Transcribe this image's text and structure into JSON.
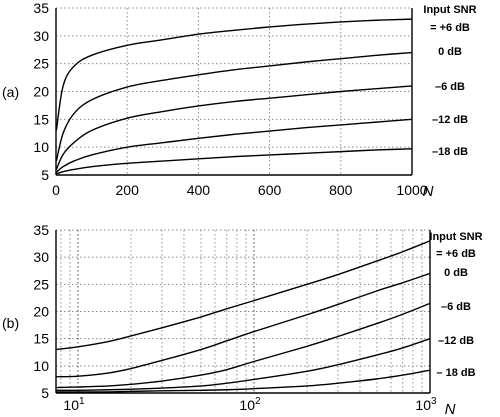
{
  "chart_data": [
    {
      "panel": "(a)",
      "type": "line",
      "xscale": "linear",
      "xlabel": "N",
      "ylabel": "",
      "xlim": [
        0,
        1000
      ],
      "ylim": [
        5,
        35
      ],
      "xticks": [
        0,
        200,
        400,
        600,
        800,
        1000
      ],
      "xtick_labels": [
        "0",
        "200",
        "400",
        "600",
        "800",
        "1000"
      ],
      "yticks": [
        5,
        10,
        15,
        20,
        25,
        30,
        35
      ],
      "ytick_labels": [
        "5",
        "10",
        "15",
        "20",
        "25",
        "30",
        "35"
      ],
      "grid": true,
      "series": [
        {
          "name": "Input SNR = +6 dB",
          "x": [
            1,
            20,
            50,
            100,
            200,
            300,
            400,
            500,
            600,
            700,
            800,
            900,
            1000
          ],
          "values": [
            13,
            21,
            24.5,
            26.5,
            28.3,
            29.3,
            30.3,
            31,
            31.6,
            32.1,
            32.5,
            32.8,
            33
          ]
        },
        {
          "name": "0 dB",
          "x": [
            1,
            20,
            50,
            100,
            200,
            300,
            400,
            500,
            600,
            700,
            800,
            900,
            1000
          ],
          "values": [
            7.5,
            12.5,
            16,
            18.5,
            20.8,
            22,
            23,
            23.9,
            24.6,
            25.3,
            25.9,
            26.5,
            27
          ]
        },
        {
          "name": "–6 dB",
          "x": [
            1,
            20,
            50,
            100,
            200,
            300,
            400,
            500,
            600,
            700,
            800,
            900,
            1000
          ],
          "values": [
            6,
            8.7,
            10.8,
            13,
            15.2,
            16.4,
            17.4,
            18.2,
            18.8,
            19.4,
            20,
            20.5,
            21
          ]
        },
        {
          "name": "–12 dB",
          "x": [
            1,
            20,
            50,
            100,
            200,
            300,
            400,
            500,
            600,
            700,
            800,
            900,
            1000
          ],
          "values": [
            5.5,
            6.5,
            7.5,
            8.6,
            10,
            10.8,
            11.6,
            12.3,
            12.9,
            13.5,
            14,
            14.5,
            15
          ]
        },
        {
          "name": "–18 dB",
          "x": [
            1,
            20,
            50,
            100,
            200,
            300,
            400,
            500,
            600,
            700,
            800,
            900,
            1000
          ],
          "values": [
            5.2,
            5.6,
            6,
            6.5,
            7.1,
            7.5,
            7.9,
            8.3,
            8.6,
            8.9,
            9.2,
            9.5,
            9.7
          ]
        }
      ]
    },
    {
      "panel": "(b)",
      "type": "line",
      "xscale": "log",
      "xlabel": "N",
      "ylabel": "",
      "xlim": [
        7.5,
        1000
      ],
      "ylim": [
        5,
        35
      ],
      "xticks": [
        10,
        100,
        1000
      ],
      "xtick_labels": [
        {
          "base": "10",
          "exp": "1"
        },
        {
          "base": "10",
          "exp": "2"
        },
        {
          "base": "10",
          "exp": "3"
        }
      ],
      "yticks": [
        5,
        10,
        15,
        20,
        25,
        30,
        35
      ],
      "ytick_labels": [
        "5",
        "10",
        "15",
        "20",
        "25",
        "30",
        "35"
      ],
      "grid": true,
      "series": [
        {
          "name": "Input SNR = +6 dB",
          "x": [
            7.5,
            10,
            15,
            20,
            30,
            50,
            70,
            100,
            200,
            300,
            500,
            700,
            1000
          ],
          "values": [
            13,
            13.5,
            14.5,
            15.5,
            17,
            19,
            20.5,
            22,
            25,
            26.8,
            29.3,
            31,
            33
          ]
        },
        {
          "name": "0 dB",
          "x": [
            7.5,
            10,
            15,
            20,
            30,
            50,
            70,
            100,
            200,
            300,
            500,
            700,
            1000
          ],
          "values": [
            8,
            8.1,
            8.7,
            9.5,
            11,
            13,
            14.6,
            16.3,
            19.4,
            21.3,
            23.8,
            25.3,
            27
          ]
        },
        {
          "name": "–6 dB",
          "x": [
            7.5,
            10,
            15,
            20,
            30,
            50,
            70,
            100,
            200,
            300,
            500,
            700,
            1000
          ],
          "values": [
            6,
            6.1,
            6.3,
            6.6,
            7.2,
            8.3,
            9.3,
            10.8,
            13.6,
            15.4,
            17.8,
            19.5,
            21.5
          ]
        },
        {
          "name": "–12 dB",
          "x": [
            7.5,
            10,
            15,
            20,
            30,
            50,
            70,
            100,
            200,
            300,
            500,
            700,
            1000
          ],
          "values": [
            5.5,
            5.5,
            5.6,
            5.7,
            5.9,
            6.3,
            6.8,
            7.5,
            9,
            10.2,
            12,
            13.3,
            15
          ]
        },
        {
          "name": "– 18 dB",
          "x": [
            7.5,
            10,
            15,
            20,
            30,
            50,
            70,
            100,
            200,
            300,
            500,
            700,
            1000
          ],
          "values": [
            5.2,
            5.2,
            5.2,
            5.3,
            5.4,
            5.5,
            5.6,
            5.8,
            6.3,
            6.8,
            7.6,
            8.3,
            9.2
          ]
        }
      ]
    }
  ]
}
